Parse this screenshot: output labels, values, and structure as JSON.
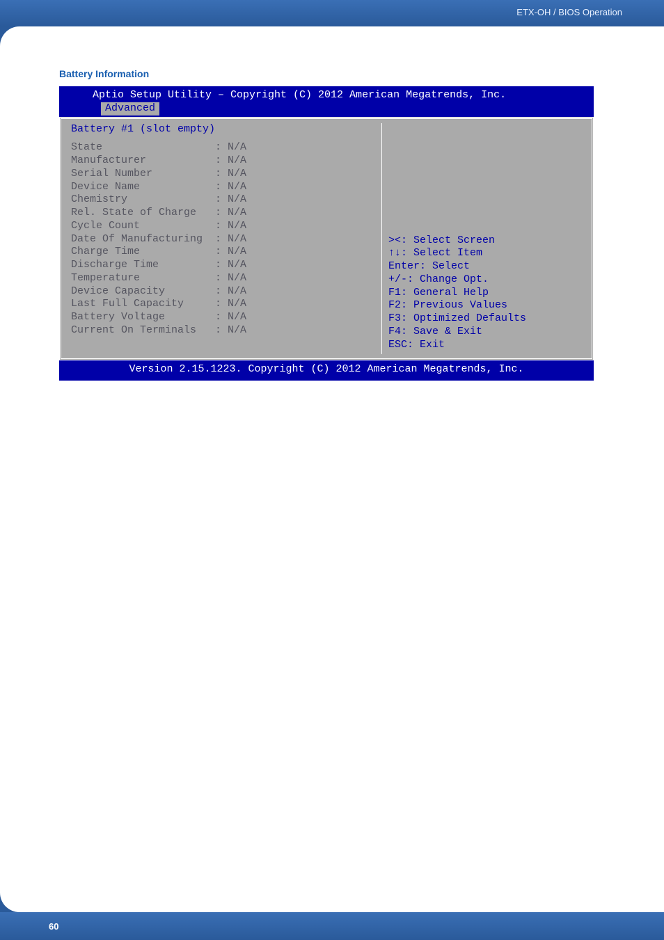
{
  "header": {
    "breadcrumb": "ETX-OH / BIOS Operation"
  },
  "section_title": "Battery Information",
  "bios": {
    "title": "Aptio Setup Utility – Copyright (C) 2012 American Megatrends, Inc.",
    "tab": "Advanced",
    "panel_title": "Battery #1 (slot empty)",
    "fields": [
      {
        "label": "State",
        "value": "N/A"
      },
      {
        "label": "Manufacturer",
        "value": "N/A"
      },
      {
        "label": "Serial Number",
        "value": "N/A"
      },
      {
        "label": "Device Name",
        "value": "N/A"
      },
      {
        "label": "Chemistry",
        "value": "N/A"
      },
      {
        "label": "Rel. State of Charge",
        "value": "N/A"
      },
      {
        "label": "Cycle Count",
        "value": "N/A"
      },
      {
        "label": "Date Of Manufacturing",
        "value": "N/A"
      },
      {
        "label": "Charge Time",
        "value": "N/A"
      },
      {
        "label": "Discharge Time",
        "value": "N/A"
      },
      {
        "label": "Temperature",
        "value": "N/A"
      },
      {
        "label": "Device Capacity",
        "value": "N/A"
      },
      {
        "label": "Last Full Capacity",
        "value": "N/A"
      },
      {
        "label": "Battery Voltage",
        "value": "N/A"
      },
      {
        "label": "Current On Terminals",
        "value": "N/A"
      }
    ],
    "help": [
      "><: Select Screen",
      "↑↓: Select Item",
      "Enter: Select",
      "+/-: Change Opt.",
      "F1: General Help",
      "F2: Previous Values",
      "F3: Optimized Defaults",
      "F4: Save & Exit",
      "ESC: Exit"
    ],
    "footer": "Version 2.15.1223. Copyright (C) 2012 American Megatrends, Inc."
  },
  "page_number": "60",
  "colors": {
    "header_grad_top": "#3a6fb5",
    "header_grad_bot": "#2a5a9a",
    "title_blue": "#1a5fb0",
    "bios_bg": "#0000a8",
    "bios_panel": "#aaaaaa",
    "bios_dim": "#555560"
  }
}
